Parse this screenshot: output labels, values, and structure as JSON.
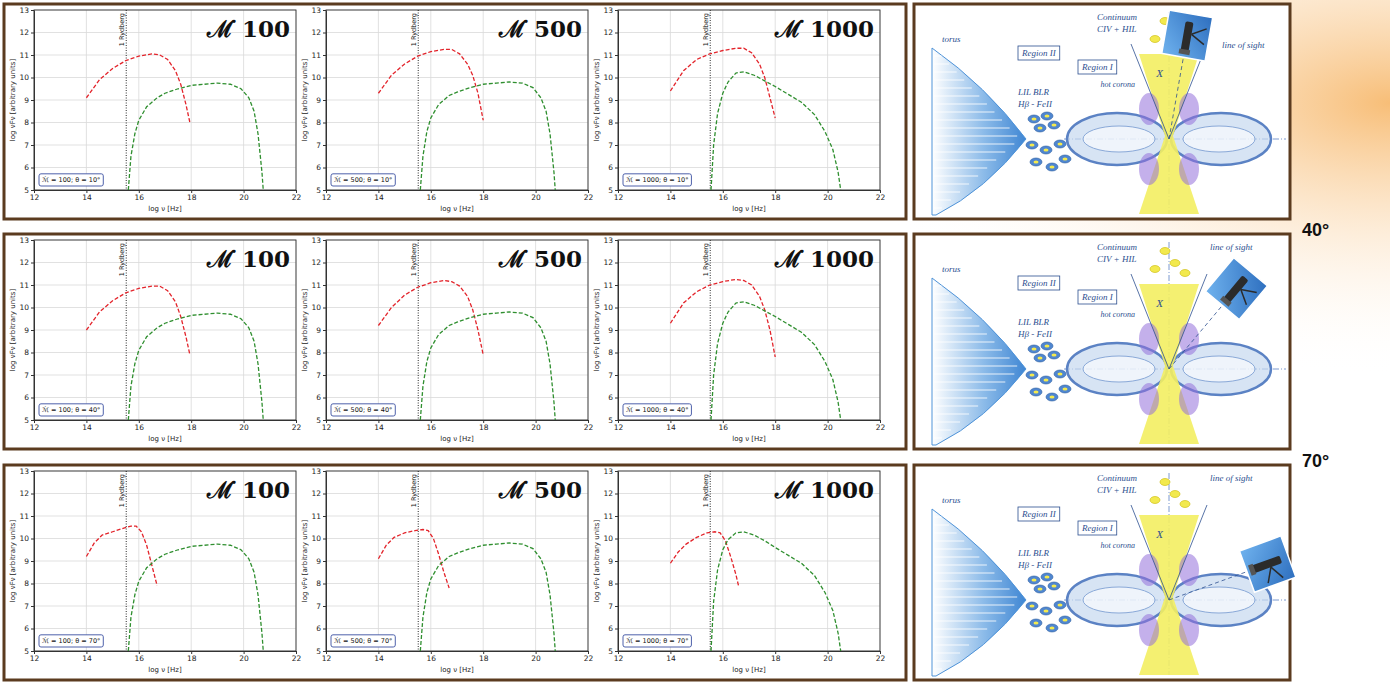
{
  "chart_data": [
    {
      "type": "line",
      "title": "ℳ̇ 100",
      "xlabel": "log ν [Hz]",
      "ylabel": "log νFν [arbitrary units]",
      "xlim": [
        12,
        22
      ],
      "ylim": [
        5,
        13
      ],
      "xticks": [
        12,
        14,
        16,
        18,
        20,
        22
      ],
      "yticks": [
        5,
        6,
        7,
        8,
        9,
        10,
        11,
        12,
        13
      ],
      "grid": true,
      "annotations": [
        {
          "text": "1 Rydberg",
          "x": 15.52
        },
        {
          "text": "ℳ̇ = 100; θ = 10°"
        }
      ],
      "series": [
        {
          "color": "#e3242b",
          "line_style": "dashed",
          "x": [
            14,
            14.5,
            15,
            15.5,
            16,
            16.5,
            16.8,
            17.1,
            17.4,
            17.6,
            17.8,
            17.95
          ],
          "values": [
            9.1,
            9.9,
            10.4,
            10.75,
            10.95,
            11.05,
            11,
            10.8,
            10.3,
            9.7,
            8.8,
            8
          ]
        },
        {
          "color": "#2f8f2f",
          "line_style": "dashed",
          "x": [
            15.6,
            15.7,
            15.85,
            16,
            16.3,
            16.7,
            17,
            17.5,
            18,
            18.5,
            19,
            19.5,
            19.9,
            20.2,
            20.4,
            20.55,
            20.7,
            20.75
          ],
          "values": [
            5,
            6.5,
            7.5,
            8.1,
            8.7,
            9.1,
            9.3,
            9.5,
            9.65,
            9.7,
            9.75,
            9.7,
            9.5,
            9.1,
            8.5,
            7.5,
            5.8,
            5
          ]
        }
      ]
    },
    {
      "type": "line",
      "title": "ℳ̇ 500",
      "xlabel": "log ν [Hz]",
      "ylabel": "log νFν [arbitrary units]",
      "xlim": [
        12,
        22
      ],
      "ylim": [
        5,
        13
      ],
      "xticks": [
        12,
        14,
        16,
        18,
        20,
        22
      ],
      "yticks": [
        5,
        6,
        7,
        8,
        9,
        10,
        11,
        12,
        13
      ],
      "grid": true,
      "annotations": [
        {
          "text": "1 Rydberg",
          "x": 15.52
        },
        {
          "text": "ℳ̇ = 500; θ = 10°"
        }
      ],
      "series": [
        {
          "color": "#e3242b",
          "line_style": "dashed",
          "x": [
            14,
            14.5,
            15,
            15.5,
            16,
            16.5,
            16.8,
            17.1,
            17.4,
            17.6,
            17.8,
            18
          ],
          "values": [
            9.3,
            10.1,
            10.6,
            10.95,
            11.15,
            11.25,
            11.25,
            11.05,
            10.6,
            10.1,
            9.3,
            8.1
          ]
        },
        {
          "color": "#2f8f2f",
          "line_style": "dashed",
          "x": [
            15.6,
            15.7,
            15.85,
            16,
            16.3,
            16.7,
            17,
            17.5,
            18,
            18.5,
            19,
            19.5,
            19.9,
            20.2,
            20.4,
            20.55,
            20.7,
            20.75
          ],
          "values": [
            5,
            6.5,
            7.6,
            8.2,
            8.8,
            9.2,
            9.35,
            9.55,
            9.7,
            9.75,
            9.8,
            9.75,
            9.55,
            9.1,
            8.5,
            7.5,
            5.8,
            5
          ]
        }
      ]
    },
    {
      "type": "line",
      "title": "ℳ̇ 1000",
      "xlabel": "log ν [Hz]",
      "ylabel": "log νFν [arbitrary units]",
      "xlim": [
        12,
        22
      ],
      "ylim": [
        5,
        13
      ],
      "xticks": [
        12,
        14,
        16,
        18,
        20,
        22
      ],
      "yticks": [
        5,
        6,
        7,
        8,
        9,
        10,
        11,
        12,
        13
      ],
      "grid": true,
      "annotations": [
        {
          "text": "1 Rydberg",
          "x": 15.52
        },
        {
          "text": "ℳ̇ = 1000; θ = 10°"
        }
      ],
      "series": [
        {
          "color": "#e3242b",
          "line_style": "dashed",
          "x": [
            14,
            14.5,
            15,
            15.5,
            16,
            16.5,
            16.8,
            17.1,
            17.4,
            17.6,
            17.8,
            18
          ],
          "values": [
            9.4,
            10.3,
            10.8,
            11.05,
            11.2,
            11.3,
            11.3,
            11.1,
            10.6,
            10,
            9.1,
            8.2
          ]
        },
        {
          "color": "#2f8f2f",
          "line_style": "dashed",
          "x": [
            15.55,
            15.65,
            15.8,
            16,
            16.2,
            16.5,
            16.8,
            17.2,
            17.6,
            18,
            18.5,
            19,
            19.5,
            19.9,
            20.2,
            20.4,
            20.5
          ],
          "values": [
            5,
            7,
            8.4,
            9.3,
            9.8,
            10.2,
            10.25,
            10.1,
            9.85,
            9.6,
            9.25,
            8.9,
            8.35,
            7.6,
            6.8,
            5.8,
            5
          ]
        }
      ]
    },
    {
      "type": "line",
      "title": "ℳ̇ 100",
      "xlabel": "log ν [Hz]",
      "ylabel": "log νFν [arbitrary units]",
      "xlim": [
        12,
        22
      ],
      "ylim": [
        5,
        13
      ],
      "xticks": [
        12,
        14,
        16,
        18,
        20,
        22
      ],
      "yticks": [
        5,
        6,
        7,
        8,
        9,
        10,
        11,
        12,
        13
      ],
      "grid": true,
      "annotations": [
        {
          "text": "1 Rydberg",
          "x": 15.52
        },
        {
          "text": "ℳ̇ = 100; θ = 40°"
        }
      ],
      "series": [
        {
          "color": "#e3242b",
          "line_style": "dashed",
          "x": [
            14,
            14.5,
            15,
            15.5,
            16,
            16.5,
            16.8,
            17.1,
            17.4,
            17.6,
            17.8,
            17.95
          ],
          "values": [
            9,
            9.8,
            10.3,
            10.65,
            10.85,
            10.95,
            10.95,
            10.75,
            10.25,
            9.6,
            8.7,
            7.9
          ]
        },
        {
          "color": "#2f8f2f",
          "line_style": "dashed",
          "x": [
            15.6,
            15.7,
            15.85,
            16,
            16.3,
            16.7,
            17,
            17.5,
            18,
            18.5,
            19,
            19.5,
            19.9,
            20.2,
            20.4,
            20.55,
            20.7,
            20.75
          ],
          "values": [
            5,
            6.5,
            7.5,
            8.1,
            8.7,
            9.1,
            9.3,
            9.5,
            9.65,
            9.7,
            9.75,
            9.7,
            9.5,
            9.1,
            8.5,
            7.5,
            5.8,
            5
          ]
        }
      ]
    },
    {
      "type": "line",
      "title": "ℳ̇ 500",
      "xlabel": "log ν [Hz]",
      "ylabel": "log νFν [arbitrary units]",
      "xlim": [
        12,
        22
      ],
      "ylim": [
        5,
        13
      ],
      "xticks": [
        12,
        14,
        16,
        18,
        20,
        22
      ],
      "yticks": [
        5,
        6,
        7,
        8,
        9,
        10,
        11,
        12,
        13
      ],
      "grid": true,
      "annotations": [
        {
          "text": "1 Rydberg",
          "x": 15.52
        },
        {
          "text": "ℳ̇ = 500; θ = 40°"
        }
      ],
      "series": [
        {
          "color": "#e3242b",
          "line_style": "dashed",
          "x": [
            14,
            14.5,
            15,
            15.5,
            16,
            16.5,
            16.8,
            17.1,
            17.4,
            17.6,
            17.8,
            18
          ],
          "values": [
            9.2,
            10,
            10.55,
            10.9,
            11.1,
            11.2,
            11.15,
            10.95,
            10.5,
            9.9,
            9,
            7.9
          ]
        },
        {
          "color": "#2f8f2f",
          "line_style": "dashed",
          "x": [
            15.6,
            15.7,
            15.85,
            16,
            16.3,
            16.7,
            17,
            17.5,
            18,
            18.5,
            19,
            19.5,
            19.9,
            20.2,
            20.4,
            20.55,
            20.7,
            20.75
          ],
          "values": [
            5,
            6.5,
            7.6,
            8.2,
            8.8,
            9.2,
            9.35,
            9.55,
            9.7,
            9.75,
            9.8,
            9.75,
            9.55,
            9.1,
            8.5,
            7.5,
            5.8,
            5
          ]
        }
      ]
    },
    {
      "type": "line",
      "title": "ℳ̇ 1000",
      "xlabel": "log ν [Hz]",
      "ylabel": "log νFν [arbitrary units]",
      "xlim": [
        12,
        22
      ],
      "ylim": [
        5,
        13
      ],
      "xticks": [
        12,
        14,
        16,
        18,
        20,
        22
      ],
      "yticks": [
        5,
        6,
        7,
        8,
        9,
        10,
        11,
        12,
        13
      ],
      "grid": true,
      "annotations": [
        {
          "text": "1 Rydberg",
          "x": 15.52
        },
        {
          "text": "ℳ̇ = 1000; θ = 40°"
        }
      ],
      "series": [
        {
          "color": "#e3242b",
          "line_style": "dashed",
          "x": [
            14,
            14.5,
            15,
            15.5,
            16,
            16.5,
            16.8,
            17.1,
            17.4,
            17.6,
            17.8,
            18
          ],
          "values": [
            9.3,
            10.2,
            10.7,
            11,
            11.15,
            11.25,
            11.2,
            11,
            10.5,
            9.9,
            9,
            7.8
          ]
        },
        {
          "color": "#2f8f2f",
          "line_style": "dashed",
          "x": [
            15.55,
            15.65,
            15.8,
            16,
            16.2,
            16.5,
            16.8,
            17.2,
            17.6,
            18,
            18.5,
            19,
            19.5,
            19.9,
            20.2,
            20.4,
            20.5
          ],
          "values": [
            5,
            7,
            8.4,
            9.3,
            9.8,
            10.2,
            10.25,
            10.1,
            9.85,
            9.6,
            9.25,
            8.9,
            8.35,
            7.6,
            6.8,
            5.8,
            5
          ]
        }
      ]
    },
    {
      "type": "line",
      "title": "ℳ̇ 100",
      "xlabel": "log ν [Hz]",
      "ylabel": "log νFν [arbitrary units]",
      "xlim": [
        12,
        22
      ],
      "ylim": [
        5,
        13
      ],
      "xticks": [
        12,
        14,
        16,
        18,
        20,
        22
      ],
      "yticks": [
        5,
        6,
        7,
        8,
        9,
        10,
        11,
        12,
        13
      ],
      "grid": true,
      "annotations": [
        {
          "text": "1 Rydberg",
          "x": 15.52
        },
        {
          "text": "ℳ̇ = 100; θ = 70°"
        }
      ],
      "series": [
        {
          "color": "#e3242b",
          "line_style": "dashed",
          "x": [
            14,
            14.3,
            14.6,
            15,
            15.4,
            15.7,
            15.9,
            16.1,
            16.3,
            16.5,
            16.7
          ],
          "values": [
            9.2,
            9.8,
            10.15,
            10.3,
            10.45,
            10.55,
            10.55,
            10.3,
            9.7,
            8.8,
            7.9
          ]
        },
        {
          "color": "#2f8f2f",
          "line_style": "dashed",
          "x": [
            15.6,
            15.7,
            15.85,
            16,
            16.3,
            16.7,
            17,
            17.5,
            18,
            18.5,
            19,
            19.5,
            19.9,
            20.2,
            20.4,
            20.55,
            20.7,
            20.75
          ],
          "values": [
            5,
            6.5,
            7.5,
            8.1,
            8.7,
            9.1,
            9.3,
            9.5,
            9.65,
            9.7,
            9.75,
            9.7,
            9.5,
            9.1,
            8.5,
            7.5,
            5.8,
            5
          ]
        }
      ]
    },
    {
      "type": "line",
      "title": "ℳ̇ 500",
      "xlabel": "log ν [Hz]",
      "ylabel": "log νFν [arbitrary units]",
      "xlim": [
        12,
        22
      ],
      "ylim": [
        5,
        13
      ],
      "xticks": [
        12,
        14,
        16,
        18,
        20,
        22
      ],
      "yticks": [
        5,
        6,
        7,
        8,
        9,
        10,
        11,
        12,
        13
      ],
      "grid": true,
      "annotations": [
        {
          "text": "1 Rydberg",
          "x": 15.52
        },
        {
          "text": "ℳ̇ = 500; θ = 70°"
        }
      ],
      "series": [
        {
          "color": "#e3242b",
          "line_style": "dashed",
          "x": [
            14,
            14.3,
            14.6,
            15,
            15.4,
            15.7,
            15.9,
            16.1,
            16.3,
            16.5,
            16.7
          ],
          "values": [
            9.1,
            9.7,
            10.05,
            10.25,
            10.35,
            10.4,
            10.35,
            10,
            9.3,
            8.5,
            7.8
          ]
        },
        {
          "color": "#2f8f2f",
          "line_style": "dashed",
          "x": [
            15.6,
            15.7,
            15.85,
            16,
            16.3,
            16.7,
            17,
            17.5,
            18,
            18.5,
            19,
            19.5,
            19.9,
            20.2,
            20.4,
            20.55,
            20.7,
            20.75
          ],
          "values": [
            5,
            6.5,
            7.6,
            8.2,
            8.8,
            9.2,
            9.35,
            9.55,
            9.7,
            9.75,
            9.8,
            9.75,
            9.55,
            9.1,
            8.5,
            7.5,
            5.8,
            5
          ]
        }
      ]
    },
    {
      "type": "line",
      "title": "ℳ̇ 1000",
      "xlabel": "log ν [Hz]",
      "ylabel": "log νFν [arbitrary units]",
      "xlim": [
        12,
        22
      ],
      "ylim": [
        5,
        13
      ],
      "xticks": [
        12,
        14,
        16,
        18,
        20,
        22
      ],
      "yticks": [
        5,
        6,
        7,
        8,
        9,
        10,
        11,
        12,
        13
      ],
      "grid": true,
      "annotations": [
        {
          "text": "1 Rydberg",
          "x": 15.52
        },
        {
          "text": "ℳ̇ = 1000; θ = 70°"
        }
      ],
      "series": [
        {
          "color": "#e3242b",
          "line_style": "dashed",
          "x": [
            14,
            14.3,
            14.6,
            15,
            15.4,
            15.7,
            15.9,
            16.1,
            16.3,
            16.5,
            16.6
          ],
          "values": [
            8.9,
            9.4,
            9.75,
            10.05,
            10.25,
            10.3,
            10.25,
            9.9,
            9.2,
            8.4,
            7.9
          ]
        },
        {
          "color": "#2f8f2f",
          "line_style": "dashed",
          "x": [
            15.55,
            15.65,
            15.8,
            16,
            16.2,
            16.5,
            16.8,
            17.2,
            17.6,
            18,
            18.5,
            19,
            19.5,
            19.9,
            20.2,
            20.4,
            20.5
          ],
          "values": [
            5,
            7.2,
            8.6,
            9.5,
            9.95,
            10.25,
            10.3,
            10.15,
            9.9,
            9.6,
            9.25,
            8.9,
            8.35,
            7.6,
            6.8,
            5.8,
            5
          ]
        }
      ]
    }
  ],
  "diagram": {
    "texts": {
      "region_2": "Region II",
      "region_1": "Region I",
      "torus": "torus",
      "blr": "LIL BLR",
      "blr_lines": "Hβ - FeII",
      "continuum": "Continuum",
      "continuum_lines": "CIV + HIL",
      "x_ray": "X",
      "corona": "hot corona",
      "line_of_sight": "line of sight"
    },
    "panels": [
      {
        "angle": 10
      },
      {
        "angle": 40,
        "label": "40°"
      },
      {
        "angle": 70,
        "label": "70°"
      }
    ]
  }
}
